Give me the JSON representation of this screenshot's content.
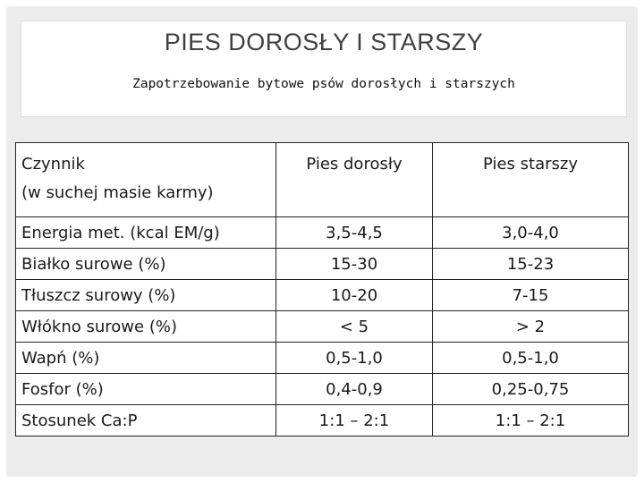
{
  "title": "PIES DOROSŁY I STARSZY",
  "subtitle": "Zapotrzebowanie bytowe psów dorosłych i starszych",
  "table": {
    "header": {
      "col1_line1": "Czynnik",
      "col1_line2": "(w suchej masie karmy)",
      "col2": "Pies dorosły",
      "col3": "Pies starszy"
    },
    "rows": [
      {
        "factor": "Energia met. (kcal EM/g)",
        "adult": "3,5-4,5",
        "senior": "3,0-4,0"
      },
      {
        "factor": "Białko surowe (%)",
        "adult": "15-30",
        "senior": "15-23"
      },
      {
        "factor": "Tłuszcz surowy (%)",
        "adult": "10-20",
        "senior": "7-15"
      },
      {
        "factor": "Włókno surowe (%)",
        "adult": "< 5",
        "senior": "> 2"
      },
      {
        "factor": "Wapń (%)",
        "adult": "0,5-1,0",
        "senior": "0,5-1,0"
      },
      {
        "factor": "Fosfor (%)",
        "adult": "0,4-0,9",
        "senior": "0,25-0,75"
      },
      {
        "factor": "Stosunek Ca:P",
        "adult": "1:1 – 2:1",
        "senior": "1:1 – 2:1"
      }
    ]
  }
}
